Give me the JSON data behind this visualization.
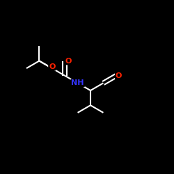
{
  "background_color": "#000000",
  "bond_color": "#ffffff",
  "bond_width": 1.5,
  "atom_colors": {
    "N": "#3333ff",
    "O": "#ff2200",
    "C": "#ffffff",
    "H": "#ffffff"
  },
  "figsize": [
    2.5,
    2.5
  ],
  "dpi": 100,
  "font_size_atom": 8.0,
  "font_size_small": 7.0
}
